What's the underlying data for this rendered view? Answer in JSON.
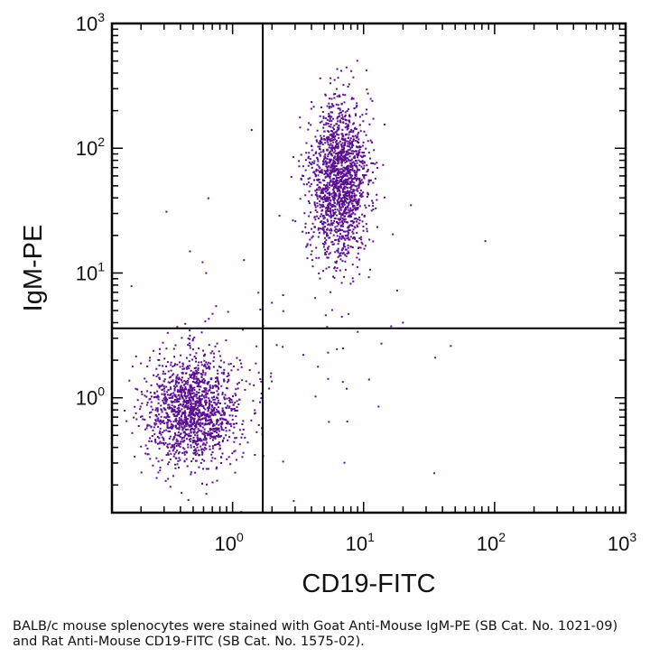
{
  "chart_data": {
    "type": "scatter",
    "title": "",
    "xlabel": "CD19-FITC",
    "ylabel": "IgM-PE",
    "xscale": "log",
    "yscale": "log",
    "xlim": [
      0.12,
      1000
    ],
    "ylim": [
      0.12,
      1000
    ],
    "x_ticks": [
      {
        "base": "10",
        "exp": "0"
      },
      {
        "base": "10",
        "exp": "1"
      },
      {
        "base": "10",
        "exp": "2"
      },
      {
        "base": "10",
        "exp": "3"
      }
    ],
    "y_ticks": [
      {
        "base": "10",
        "exp": "0"
      },
      {
        "base": "10",
        "exp": "1"
      },
      {
        "base": "10",
        "exp": "2"
      },
      {
        "base": "10",
        "exp": "3"
      }
    ],
    "quadrant_gates": {
      "x": 1.7,
      "y": 3.6
    },
    "point_color": "#5b0f8f",
    "populations": [
      {
        "name": "CD19- IgM- (lower-left)",
        "center": [
          0.5,
          0.8
        ],
        "log10_spread": [
          0.18,
          0.22
        ],
        "count": 1500
      },
      {
        "name": "CD19+ IgM+ (upper-right)",
        "center": [
          6.5,
          55
        ],
        "log10_spread": [
          0.11,
          0.32
        ],
        "count": 1700
      },
      {
        "name": "scattered events",
        "center": [
          3.0,
          3.0
        ],
        "log10_spread": [
          0.5,
          0.5
        ],
        "count": 80
      }
    ],
    "outliers": [
      [
        85,
        18
      ],
      [
        23,
        35
      ],
      [
        20,
        4
      ],
      [
        1.4,
        140
      ],
      [
        11,
        1.4
      ],
      [
        13,
        0.85
      ]
    ]
  },
  "caption": "BALB/c mouse splenocytes were stained with Goat Anti-Mouse IgM-PE (SB Cat. No. 1021-09) and Rat Anti-Mouse CD19-FITC (SB Cat. No. 1575-02)."
}
